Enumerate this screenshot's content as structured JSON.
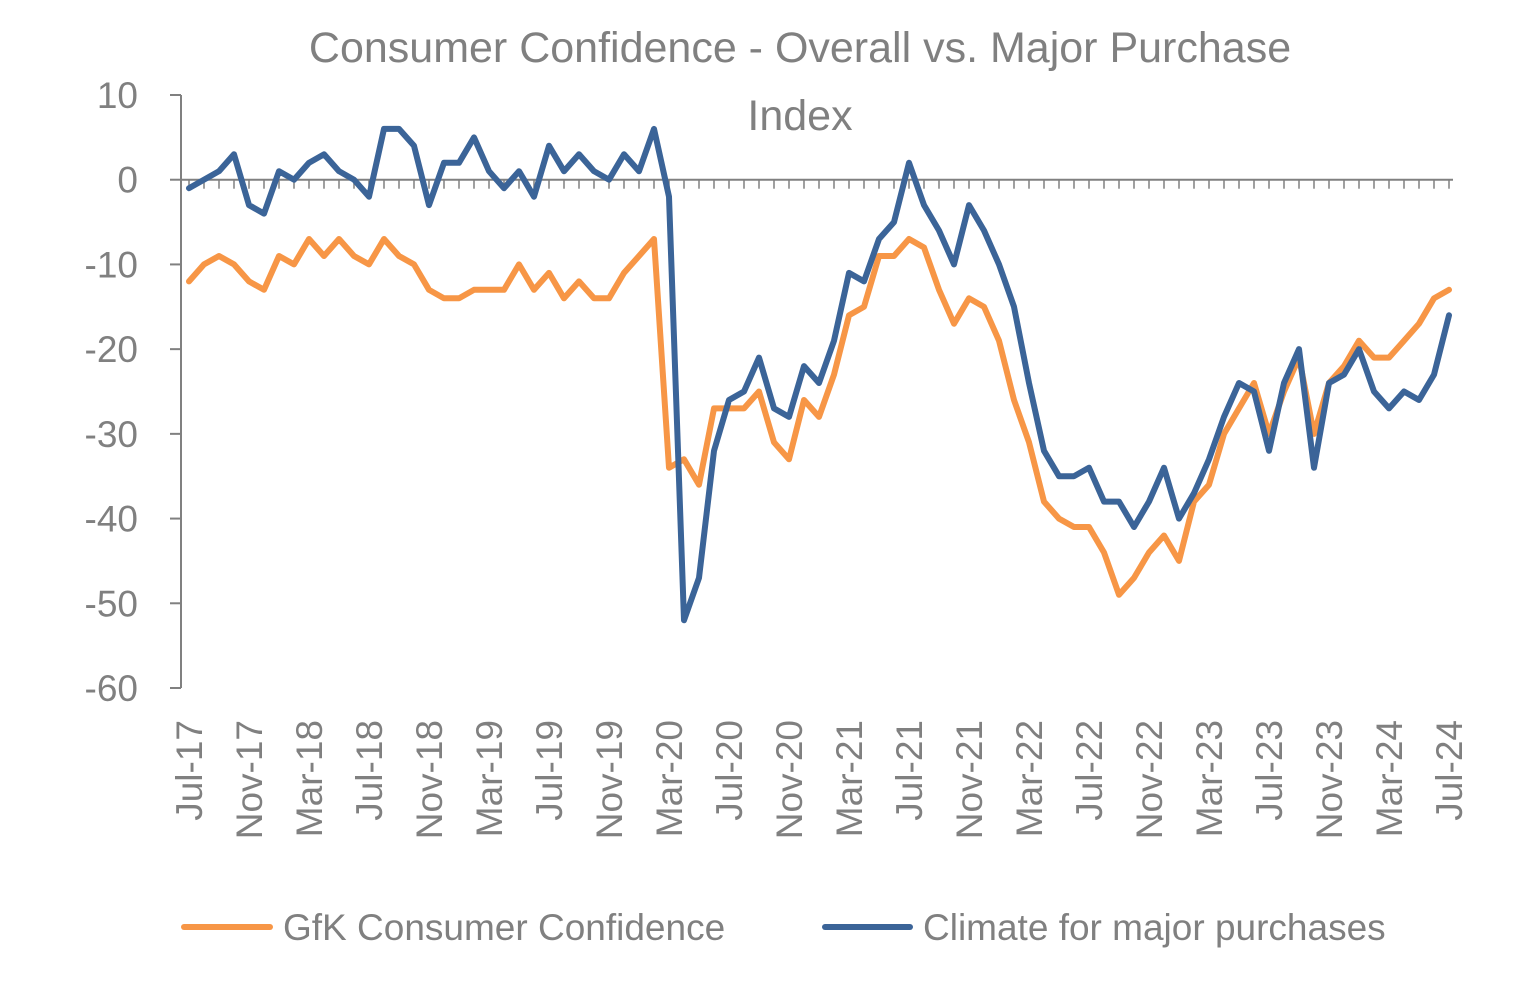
{
  "chart_data": {
    "type": "line",
    "title": "Consumer Confidence - Overall vs. Major Purchase Index",
    "xlabel": "",
    "ylabel": "",
    "ylim": [
      -60,
      10
    ],
    "yticks": [
      10,
      0,
      -10,
      -20,
      -30,
      -40,
      -50,
      -60
    ],
    "grid": false,
    "legend": "bottom",
    "x": [
      "Jul-17",
      "Aug-17",
      "Sep-17",
      "Oct-17",
      "Nov-17",
      "Dec-17",
      "Jan-18",
      "Feb-18",
      "Mar-18",
      "Apr-18",
      "May-18",
      "Jun-18",
      "Jul-18",
      "Aug-18",
      "Sep-18",
      "Oct-18",
      "Nov-18",
      "Dec-18",
      "Jan-19",
      "Feb-19",
      "Mar-19",
      "Apr-19",
      "May-19",
      "Jun-19",
      "Jul-19",
      "Aug-19",
      "Sep-19",
      "Oct-19",
      "Nov-19",
      "Dec-19",
      "Jan-20",
      "Feb-20",
      "Mar-20",
      "Apr-20",
      "May-20",
      "Jun-20",
      "Jul-20",
      "Aug-20",
      "Sep-20",
      "Oct-20",
      "Nov-20",
      "Dec-20",
      "Jan-21",
      "Feb-21",
      "Mar-21",
      "Apr-21",
      "May-21",
      "Jun-21",
      "Jul-21",
      "Aug-21",
      "Sep-21",
      "Oct-21",
      "Nov-21",
      "Dec-21",
      "Jan-22",
      "Feb-22",
      "Mar-22",
      "Apr-22",
      "May-22",
      "Jun-22",
      "Jul-22",
      "Aug-22",
      "Sep-22",
      "Oct-22",
      "Nov-22",
      "Dec-22",
      "Jan-23",
      "Feb-23",
      "Mar-23",
      "Apr-23",
      "May-23",
      "Jun-23",
      "Jul-23",
      "Aug-23",
      "Sep-23",
      "Oct-23",
      "Nov-23",
      "Dec-23",
      "Jan-24",
      "Feb-24",
      "Mar-24",
      "Apr-24",
      "May-24",
      "Jun-24",
      "Jul-24"
    ],
    "x_tick_labels": [
      "Jul-17",
      "Nov-17",
      "Mar-18",
      "Jul-18",
      "Nov-18",
      "Mar-19",
      "Jul-19",
      "Nov-19",
      "Mar-20",
      "Jul-20",
      "Nov-20",
      "Mar-21",
      "Jul-21",
      "Nov-21",
      "Mar-22",
      "Jul-22",
      "Nov-22",
      "Mar-23",
      "Jul-23",
      "Nov-23",
      "Mar-24",
      "Jul-24"
    ],
    "series": [
      {
        "name": "GfK Consumer Confidence",
        "color": "#F79646",
        "values": [
          -12,
          -10,
          -9,
          -10,
          -12,
          -13,
          -9,
          -10,
          -7,
          -9,
          -7,
          -9,
          -10,
          -7,
          -9,
          -10,
          -13,
          -14,
          -14,
          -13,
          -13,
          -13,
          -10,
          -13,
          -11,
          -14,
          -12,
          -14,
          -14,
          -11,
          -9,
          -7,
          -34,
          -33,
          -36,
          -27,
          -27,
          -27,
          -25,
          -31,
          -33,
          -26,
          -28,
          -23,
          -16,
          -15,
          -9,
          -9,
          -7,
          -8,
          -13,
          -17,
          -14,
          -15,
          -19,
          -26,
          -31,
          -38,
          -40,
          -41,
          -41,
          -44,
          -49,
          -47,
          -44,
          -42,
          -45,
          -38,
          -36,
          -30,
          -27,
          -24,
          -30,
          -25,
          -21,
          -30,
          -24,
          -22,
          -19,
          -21,
          -21,
          -19,
          -17,
          -14,
          -13
        ]
      },
      {
        "name": "Climate for major purchases",
        "color": "#3B6498",
        "values": [
          -1,
          0,
          1,
          3,
          -3,
          -4,
          1,
          0,
          2,
          3,
          1,
          0,
          -2,
          6,
          6,
          4,
          -3,
          2,
          2,
          5,
          1,
          -1,
          1,
          -2,
          4,
          1,
          3,
          1,
          0,
          3,
          1,
          6,
          -2,
          -52,
          -47,
          -32,
          -26,
          -25,
          -21,
          -27,
          -28,
          -22,
          -24,
          -19,
          -11,
          -12,
          -7,
          -5,
          2,
          -3,
          -6,
          -10,
          -3,
          -6,
          -10,
          -15,
          -24,
          -32,
          -35,
          -35,
          -34,
          -38,
          -38,
          -41,
          -38,
          -34,
          -40,
          -37,
          -33,
          -28,
          -24,
          -25,
          -32,
          -24,
          -20,
          -34,
          -24,
          -23,
          -20,
          -25,
          -27,
          -25,
          -26,
          -23,
          -16
        ]
      }
    ]
  }
}
